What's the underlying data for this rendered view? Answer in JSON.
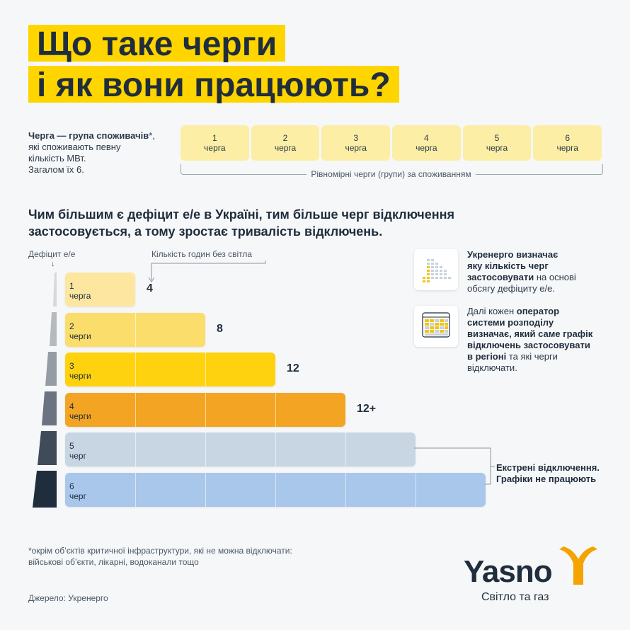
{
  "title": {
    "line1": "Що таке черги",
    "line2": "і як вони працюють?"
  },
  "definition": {
    "bold": "Черга — група споживачів",
    "star": "*,",
    "rest1": "які споживають певну",
    "rest2": "кількість МВт.",
    "rest3": "Загалом їх 6."
  },
  "queues_top": [
    {
      "n": "1",
      "label": "черга"
    },
    {
      "n": "2",
      "label": "черга"
    },
    {
      "n": "3",
      "label": "черга"
    },
    {
      "n": "4",
      "label": "черга"
    },
    {
      "n": "5",
      "label": "черга"
    },
    {
      "n": "6",
      "label": "черга"
    }
  ],
  "queues_caption": "Рівномірні черги (групи) за споживанням",
  "lead": "Чим більшим є дефіцит е/е в Україні, тим більше черг відключення застосовується, а тому зростає тривалість відключень.",
  "axis": {
    "deficit": "Дефіцит е/е",
    "hours": "Кількість годин без світла"
  },
  "chart_data": {
    "type": "bar",
    "categories": [
      "1 черга",
      "2 черги",
      "3 черги",
      "4 черги",
      "5 черг",
      "6 черг"
    ],
    "values": [
      4,
      8,
      12,
      16,
      20,
      24
    ],
    "labels": [
      "4",
      "8",
      "12",
      "12+",
      "",
      ""
    ],
    "colors": [
      "#fde7a0",
      "#fbdd6b",
      "#ffd20f",
      "#f3a423",
      "#c8d6e4",
      "#a9c7ea"
    ]
  },
  "bars": [
    {
      "n": "1",
      "label": "черга",
      "hours": "4"
    },
    {
      "n": "2",
      "label": "черги",
      "hours": "8"
    },
    {
      "n": "3",
      "label": "черги",
      "hours": "12"
    },
    {
      "n": "4",
      "label": "черги",
      "hours": "12+"
    },
    {
      "n": "5",
      "label": "черг",
      "hours": ""
    },
    {
      "n": "6",
      "label": "черг",
      "hours": ""
    }
  ],
  "emergency": {
    "line1": "Екстрені відключення.",
    "line2": "Графіки не працюють"
  },
  "info1": {
    "b1": "Укренерго визначає",
    "b2": "яку кількість черг",
    "b3": "застосовувати",
    "t1": " на основі",
    "t2": "обсягу дефіциту е/е."
  },
  "info2": {
    "t1": "Далі кожен ",
    "b1": "оператор",
    "b2": "системи розподілу",
    "b3": "визначає, який саме графік",
    "b4": "відключень застосовувати",
    "b5": "в регіоні",
    "t2": " та які черги",
    "t3": "відключати."
  },
  "footnote": {
    "line1": "*окрім об’єктів критичної інфраструктури, які не можна відключати:",
    "line2": "військові об’єкти, лікарні, водоканали тощо"
  },
  "source": "Джерело: Укренерго",
  "logo": {
    "name": "Yasno",
    "tagline": "Світло та газ"
  },
  "colors": {
    "accent": "#ffd500",
    "dark": "#1f2d3d",
    "logo_mark": "#f5a300"
  }
}
